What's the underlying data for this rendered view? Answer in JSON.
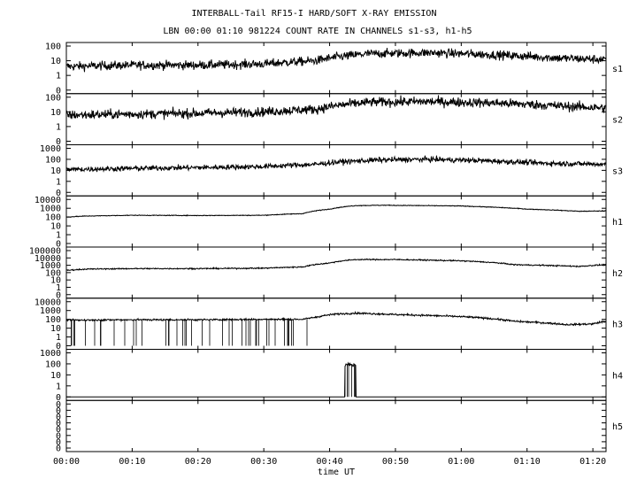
{
  "chart_data": {
    "type": "line",
    "title": "INTERBALL-Tail RF15-I HARD/SOFT X-RAY EMISSION",
    "subtitle": "LBN 00:00 01:10 981224  COUNT RATE IN CHANNELS s1-s3, h1-h5",
    "xlabel": "time UT",
    "x_ticks": [
      "00:00",
      "00:10",
      "00:20",
      "00:30",
      "00:40",
      "00:50",
      "01:00",
      "01:10",
      "01:20"
    ],
    "x_range_minutes": [
      0,
      82
    ],
    "y_scale": "log",
    "grid": false,
    "legend": "none",
    "series": [
      {
        "name": "s1",
        "y_ticks": [
          "100",
          "10",
          "1",
          "0"
        ],
        "y_range_decades": 2,
        "baseline_decade": 0.6,
        "noise_decade": 0.15,
        "values": [
          [
            0,
            4
          ],
          [
            10,
            5
          ],
          [
            20,
            5
          ],
          [
            30,
            6
          ],
          [
            38,
            10
          ],
          [
            42,
            20
          ],
          [
            46,
            30
          ],
          [
            55,
            35
          ],
          [
            65,
            25
          ],
          [
            75,
            15
          ],
          [
            82,
            12
          ]
        ]
      },
      {
        "name": "s2",
        "y_ticks": [
          "100",
          "10",
          "1",
          "0"
        ],
        "y_range_decades": 2,
        "baseline_decade": 0.6,
        "noise_decade": 0.16,
        "values": [
          [
            0,
            6
          ],
          [
            10,
            7
          ],
          [
            20,
            8
          ],
          [
            30,
            10
          ],
          [
            38,
            15
          ],
          [
            42,
            30
          ],
          [
            46,
            45
          ],
          [
            55,
            50
          ],
          [
            65,
            40
          ],
          [
            75,
            25
          ],
          [
            82,
            18
          ]
        ]
      },
      {
        "name": "s3",
        "y_ticks": [
          "1000",
          "100",
          "10",
          "1",
          "0"
        ],
        "y_range_decades": 3,
        "baseline_decade": 0.7,
        "noise_decade": 0.12,
        "values": [
          [
            0,
            12
          ],
          [
            10,
            15
          ],
          [
            20,
            18
          ],
          [
            30,
            22
          ],
          [
            38,
            35
          ],
          [
            42,
            60
          ],
          [
            48,
            90
          ],
          [
            55,
            100
          ],
          [
            62,
            80
          ],
          [
            72,
            45
          ],
          [
            82,
            35
          ]
        ]
      },
      {
        "name": "h1",
        "y_ticks": [
          "10000",
          "1000",
          "100",
          "10",
          "1",
          "0"
        ],
        "y_range_decades": 4,
        "baseline_decade": 0.6,
        "noise_decade": 0.02,
        "values": [
          [
            0,
            100
          ],
          [
            3,
            130
          ],
          [
            10,
            160
          ],
          [
            20,
            150
          ],
          [
            30,
            160
          ],
          [
            36,
            250
          ],
          [
            40,
            800
          ],
          [
            44,
            2000
          ],
          [
            48,
            2200
          ],
          [
            60,
            1800
          ],
          [
            70,
            800
          ],
          [
            78,
            450
          ],
          [
            82,
            500
          ]
        ]
      },
      {
        "name": "h2",
        "y_ticks": [
          "100000",
          "10000",
          "1000",
          "100",
          "10",
          "1",
          "0"
        ],
        "y_range_decades": 5,
        "baseline_decade": 0.6,
        "noise_decade": 0.04,
        "values": [
          [
            0,
            200
          ],
          [
            3,
            300
          ],
          [
            10,
            350
          ],
          [
            20,
            350
          ],
          [
            30,
            400
          ],
          [
            36,
            600
          ],
          [
            40,
            2000
          ],
          [
            44,
            6000
          ],
          [
            50,
            6000
          ],
          [
            60,
            4000
          ],
          [
            68,
            1200
          ],
          [
            78,
            700
          ],
          [
            82,
            1200
          ]
        ]
      },
      {
        "name": "h3",
        "y_ticks": [
          "10000",
          "1000",
          "100",
          "10",
          "1",
          "0"
        ],
        "y_range_decades": 4,
        "baseline_decade": 0.6,
        "noise_decade": 0.05,
        "spikes_until_minute": 37,
        "values": [
          [
            0,
            80
          ],
          [
            10,
            90
          ],
          [
            20,
            90
          ],
          [
            30,
            100
          ],
          [
            36,
            100
          ],
          [
            38,
            180
          ],
          [
            41,
            400
          ],
          [
            44,
            500
          ],
          [
            50,
            350
          ],
          [
            60,
            200
          ],
          [
            68,
            60
          ],
          [
            76,
            25
          ],
          [
            80,
            30
          ],
          [
            82,
            60
          ]
        ]
      },
      {
        "name": "h4",
        "y_ticks": [
          "1000",
          "100",
          "10",
          "1",
          "0"
        ],
        "y_range_decades": 3,
        "baseline_decade": 0.6,
        "noise_decade": 0.1,
        "burst_window_minutes": [
          42.3,
          44.0
        ],
        "burst_value": 80,
        "values": [
          [
            0,
            0
          ],
          [
            42.3,
            80
          ],
          [
            44.0,
            0
          ],
          [
            82,
            0
          ]
        ]
      },
      {
        "name": "h5",
        "y_ticks": [
          "0",
          "0",
          "0",
          "0",
          "0",
          "0",
          "0",
          "0"
        ],
        "y_range_decades": 0,
        "baseline_decade": 0,
        "noise_decade": 0,
        "values": [
          [
            0,
            0
          ],
          [
            82,
            0
          ]
        ]
      }
    ]
  }
}
